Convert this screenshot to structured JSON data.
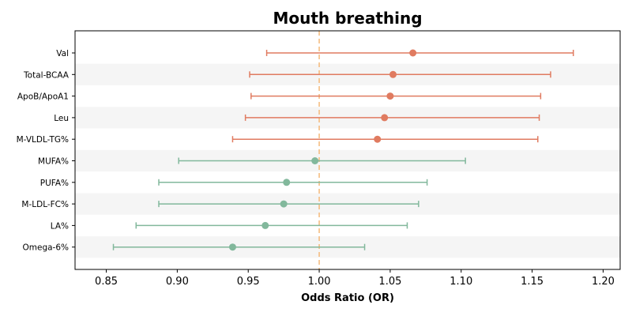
{
  "chart_data": {
    "type": "forest",
    "title": "Mouth breathing",
    "xlabel": "Odds Ratio (OR)",
    "xlim": [
      0.828,
      1.212
    ],
    "xticks": [
      "0.85",
      "0.90",
      "0.95",
      "1.00",
      "1.05",
      "1.10",
      "1.15",
      "1.20"
    ],
    "reference_line": 1.0,
    "reference_color": "#f5b97a",
    "colors": {
      "above": "#e07b60",
      "below": "#82b89c",
      "band": "#f5f5f5"
    },
    "rows": [
      {
        "label": "Val",
        "or": 1.066,
        "lo": 0.963,
        "hi": 1.179,
        "group": "above"
      },
      {
        "label": "Total-BCAA",
        "or": 1.052,
        "lo": 0.951,
        "hi": 1.163,
        "group": "above"
      },
      {
        "label": "ApoB/ApoA1",
        "or": 1.05,
        "lo": 0.952,
        "hi": 1.156,
        "group": "above"
      },
      {
        "label": "Leu",
        "or": 1.046,
        "lo": 0.948,
        "hi": 1.155,
        "group": "above"
      },
      {
        "label": "M-VLDL-TG%",
        "or": 1.041,
        "lo": 0.939,
        "hi": 1.154,
        "group": "above"
      },
      {
        "label": "MUFA%",
        "or": 0.997,
        "lo": 0.901,
        "hi": 1.103,
        "group": "below"
      },
      {
        "label": "PUFA%",
        "or": 0.977,
        "lo": 0.887,
        "hi": 1.076,
        "group": "below"
      },
      {
        "label": "M-LDL-FC%",
        "or": 0.975,
        "lo": 0.887,
        "hi": 1.07,
        "group": "below"
      },
      {
        "label": "LA%",
        "or": 0.962,
        "lo": 0.871,
        "hi": 1.062,
        "group": "below"
      },
      {
        "label": "Omega-6%",
        "or": 0.939,
        "lo": 0.855,
        "hi": 1.032,
        "group": "below"
      }
    ]
  }
}
